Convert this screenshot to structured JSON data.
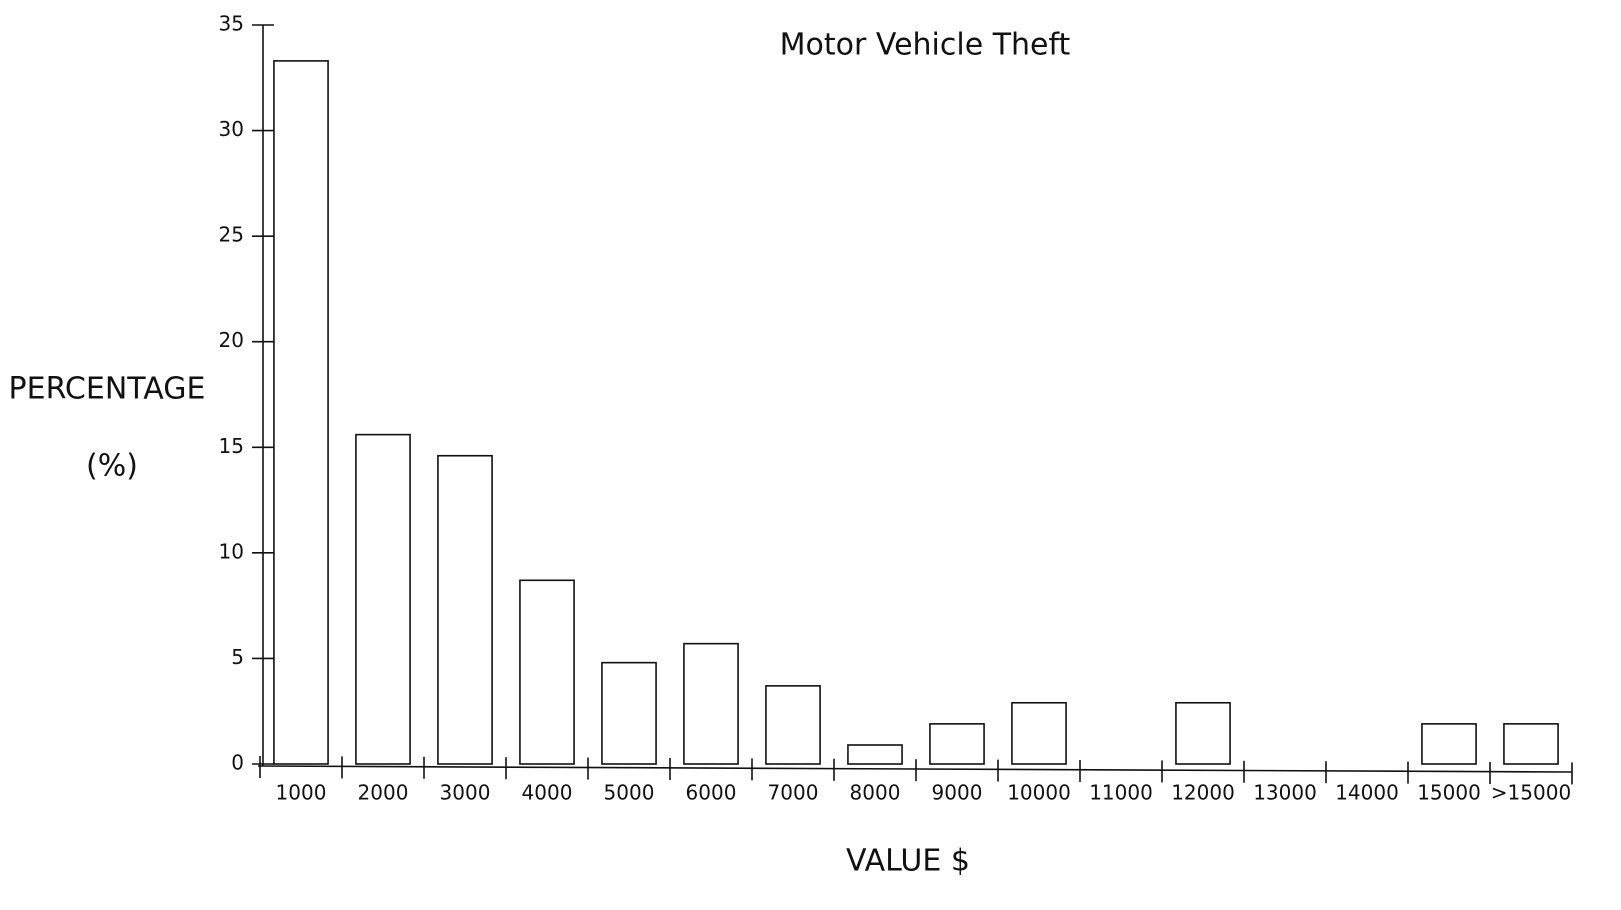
{
  "chart_data": {
    "type": "bar",
    "title": "Motor Vehicle Theft",
    "xlabel": "VALUE $",
    "ylabel": [
      "PERCENTAGE",
      "(%)"
    ],
    "categories": [
      "1000",
      "2000",
      "3000",
      "4000",
      "5000",
      "6000",
      "7000",
      "8000",
      "9000",
      "10000",
      "11000",
      "12000",
      "13000",
      "14000",
      "15000",
      ">15000"
    ],
    "values": [
      33.3,
      15.6,
      14.6,
      8.7,
      4.8,
      5.7,
      3.7,
      0.9,
      1.9,
      2.9,
      0,
      2.9,
      0,
      0,
      1.9,
      1.9
    ],
    "color": "#ffffff",
    "ylim": [
      0,
      35
    ],
    "yticks": [
      0,
      5,
      10,
      15,
      20,
      25,
      30,
      35
    ],
    "grid": false
  }
}
